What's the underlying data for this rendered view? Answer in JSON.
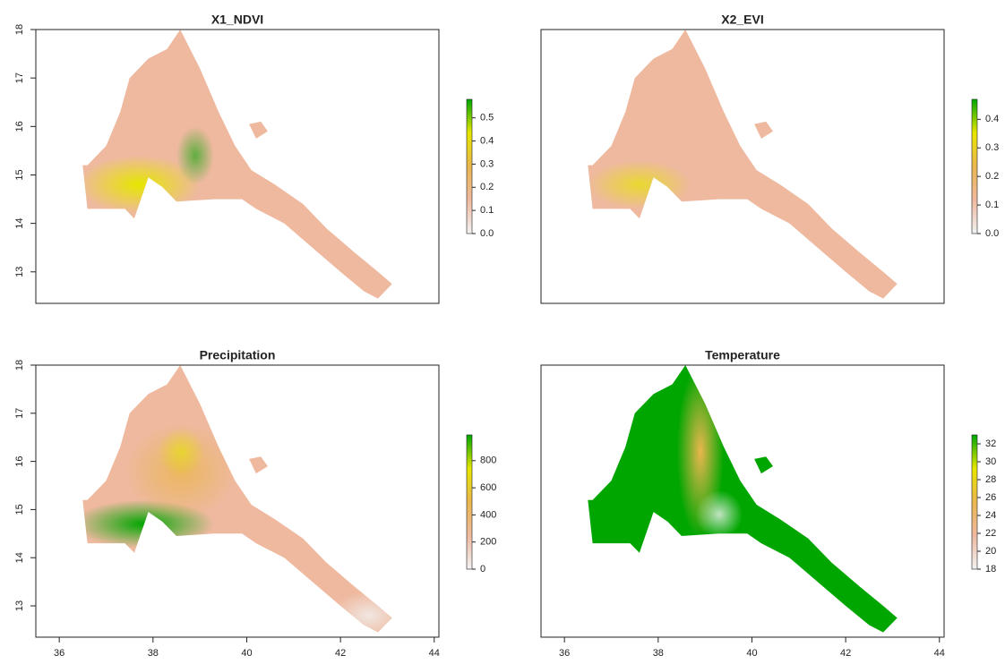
{
  "colors": [
    "#F2F2F2",
    "#EEB99F",
    "#EAB64E",
    "#E6E600",
    "#00A600"
  ],
  "panels": [
    {
      "title": "X1_NDVI",
      "xlim": [
        35.5,
        44.1
      ],
      "ylim": [
        12.35,
        18
      ],
      "yticks": [
        13,
        14,
        15,
        16,
        17,
        18
      ],
      "legend_lim": [
        0,
        0.58
      ],
      "legend_ticks": [
        {
          "value": 0,
          "label": "0.0"
        },
        0.1,
        0.2,
        0.3,
        0.4,
        0.5
      ]
    },
    {
      "title": "X2_EVI",
      "xlim": [
        35.5,
        44.1
      ],
      "ylim": [
        12.35,
        18
      ],
      "legend_lim": [
        0,
        0.47
      ],
      "legend_ticks": [
        {
          "value": 0,
          "label": "0.0"
        },
        0.1,
        0.2,
        0.3,
        0.4
      ]
    },
    {
      "title": "Precipitation",
      "xlim": [
        35.5,
        44.1
      ],
      "ylim": [
        12.35,
        18
      ],
      "yticks": [
        13,
        14,
        15,
        16,
        17,
        18
      ],
      "xticks": [
        36,
        38,
        40,
        42,
        44
      ],
      "legend_lim": [
        0,
        990
      ],
      "legend_ticks": [
        0,
        200,
        400,
        600,
        800
      ]
    },
    {
      "title": "Temperature",
      "xlim": [
        35.5,
        44.1
      ],
      "ylim": [
        12.35,
        18
      ],
      "xticks": [
        36,
        38,
        40,
        42,
        44
      ],
      "legend_lim": [
        18,
        33
      ],
      "legend_ticks": [
        18,
        20,
        22,
        24,
        26,
        28,
        30,
        32
      ]
    }
  ]
}
